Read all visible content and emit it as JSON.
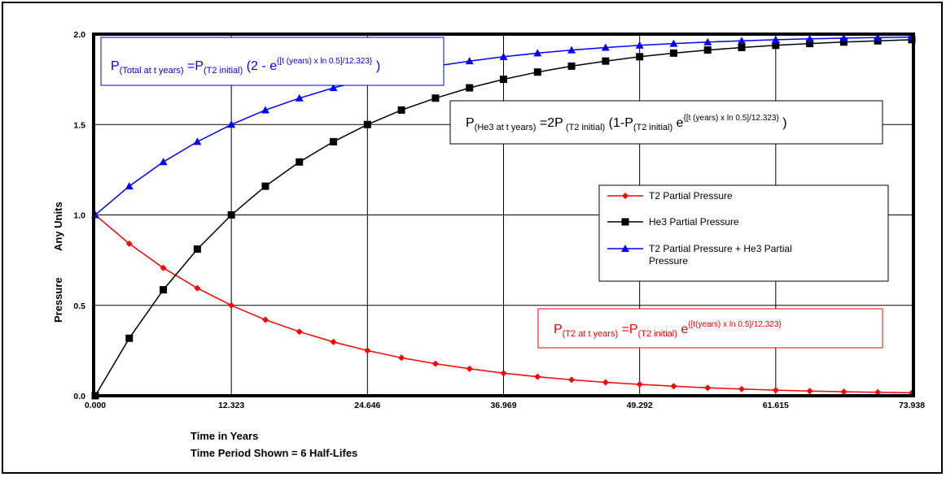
{
  "chart_data": {
    "type": "line",
    "xlabel": "Time in Years",
    "xlabel_sub": "Time Period Shown = 6 Half-Lifes",
    "ylabel_a": "Pressure",
    "ylabel_b": "Any Units",
    "xlim": [
      0,
      73.938
    ],
    "ylim": [
      0,
      2.0
    ],
    "grid": true,
    "legend_position": "center-right",
    "x_ticks": [
      "0.000",
      "12.323",
      "24.646",
      "36.969",
      "49.292",
      "61.615",
      "73.938"
    ],
    "x_tick_values": [
      0,
      12.323,
      24.646,
      36.969,
      49.292,
      61.615,
      73.938
    ],
    "y_ticks": [
      "0.0",
      "0.5",
      "1.0",
      "1.5",
      "2.0"
    ],
    "y_tick_values": [
      0,
      0.5,
      1.0,
      1.5,
      2.0
    ],
    "half_life": 12.323,
    "x": [
      0,
      3.081,
      6.162,
      9.242,
      12.323,
      15.404,
      18.485,
      21.565,
      24.646,
      27.727,
      30.808,
      33.888,
      36.969,
      40.05,
      43.131,
      46.211,
      49.292,
      52.373,
      55.454,
      58.534,
      61.615,
      64.696,
      67.777,
      70.857,
      73.938
    ],
    "series": [
      {
        "name": "T2 Partial Pressure",
        "color": "#ff0000",
        "marker": "diamond",
        "values": [
          1.0,
          0.841,
          0.707,
          0.595,
          0.5,
          0.42,
          0.354,
          0.297,
          0.25,
          0.21,
          0.177,
          0.149,
          0.125,
          0.105,
          0.088,
          0.074,
          0.063,
          0.053,
          0.044,
          0.037,
          0.031,
          0.026,
          0.022,
          0.019,
          0.016
        ]
      },
      {
        "name": "He3 Partial Pressure",
        "color": "#000000",
        "marker": "square",
        "values": [
          0.0,
          0.318,
          0.586,
          0.811,
          1.0,
          1.159,
          1.293,
          1.405,
          1.5,
          1.58,
          1.646,
          1.703,
          1.75,
          1.79,
          1.823,
          1.851,
          1.875,
          1.895,
          1.912,
          1.926,
          1.938,
          1.948,
          1.956,
          1.963,
          1.969
        ]
      },
      {
        "name": "T2 Partial Pressure + He3 Partial Pressure",
        "color": "#0000ff",
        "marker": "triangle",
        "values": [
          1.0,
          1.159,
          1.293,
          1.405,
          1.5,
          1.58,
          1.646,
          1.703,
          1.75,
          1.79,
          1.823,
          1.851,
          1.875,
          1.895,
          1.912,
          1.926,
          1.938,
          1.948,
          1.956,
          1.963,
          1.969,
          1.974,
          1.978,
          1.981,
          1.984
        ]
      }
    ]
  },
  "legend": {
    "t2": "T2 Partial Pressure",
    "he3": "He3 Partial Pressure",
    "total_line1": "T2 Partial Pressure + He3 Partial",
    "total_line2": "Pressure"
  },
  "equations": {
    "total": {
      "p": "P",
      "sub1": "(Total at  t  years)",
      "eqp": " =P",
      "sub2": "(T2 initial)",
      "body": " (2 - e",
      "sup": "{[t (years) x ln 0.5]/12.323}",
      "end": " )"
    },
    "he3": {
      "p": "P",
      "sub1": "(He3 at t years)",
      "eqp": " =2P",
      "sub2": " (T2 initial)",
      "body": " (1-P",
      "sub3": "(T2 initial)",
      "e": "  e",
      "sup": "{[t (years) x ln 0.5]/12.323}",
      "end": " )"
    },
    "t2": {
      "p": "P",
      "sub1": "(T2 at  t  years)",
      "eqp": " =P",
      "sub2": "(T2   initial)",
      "e": " e",
      "sup": "{[t(years)    x ln 0.5]/12.323}"
    }
  }
}
